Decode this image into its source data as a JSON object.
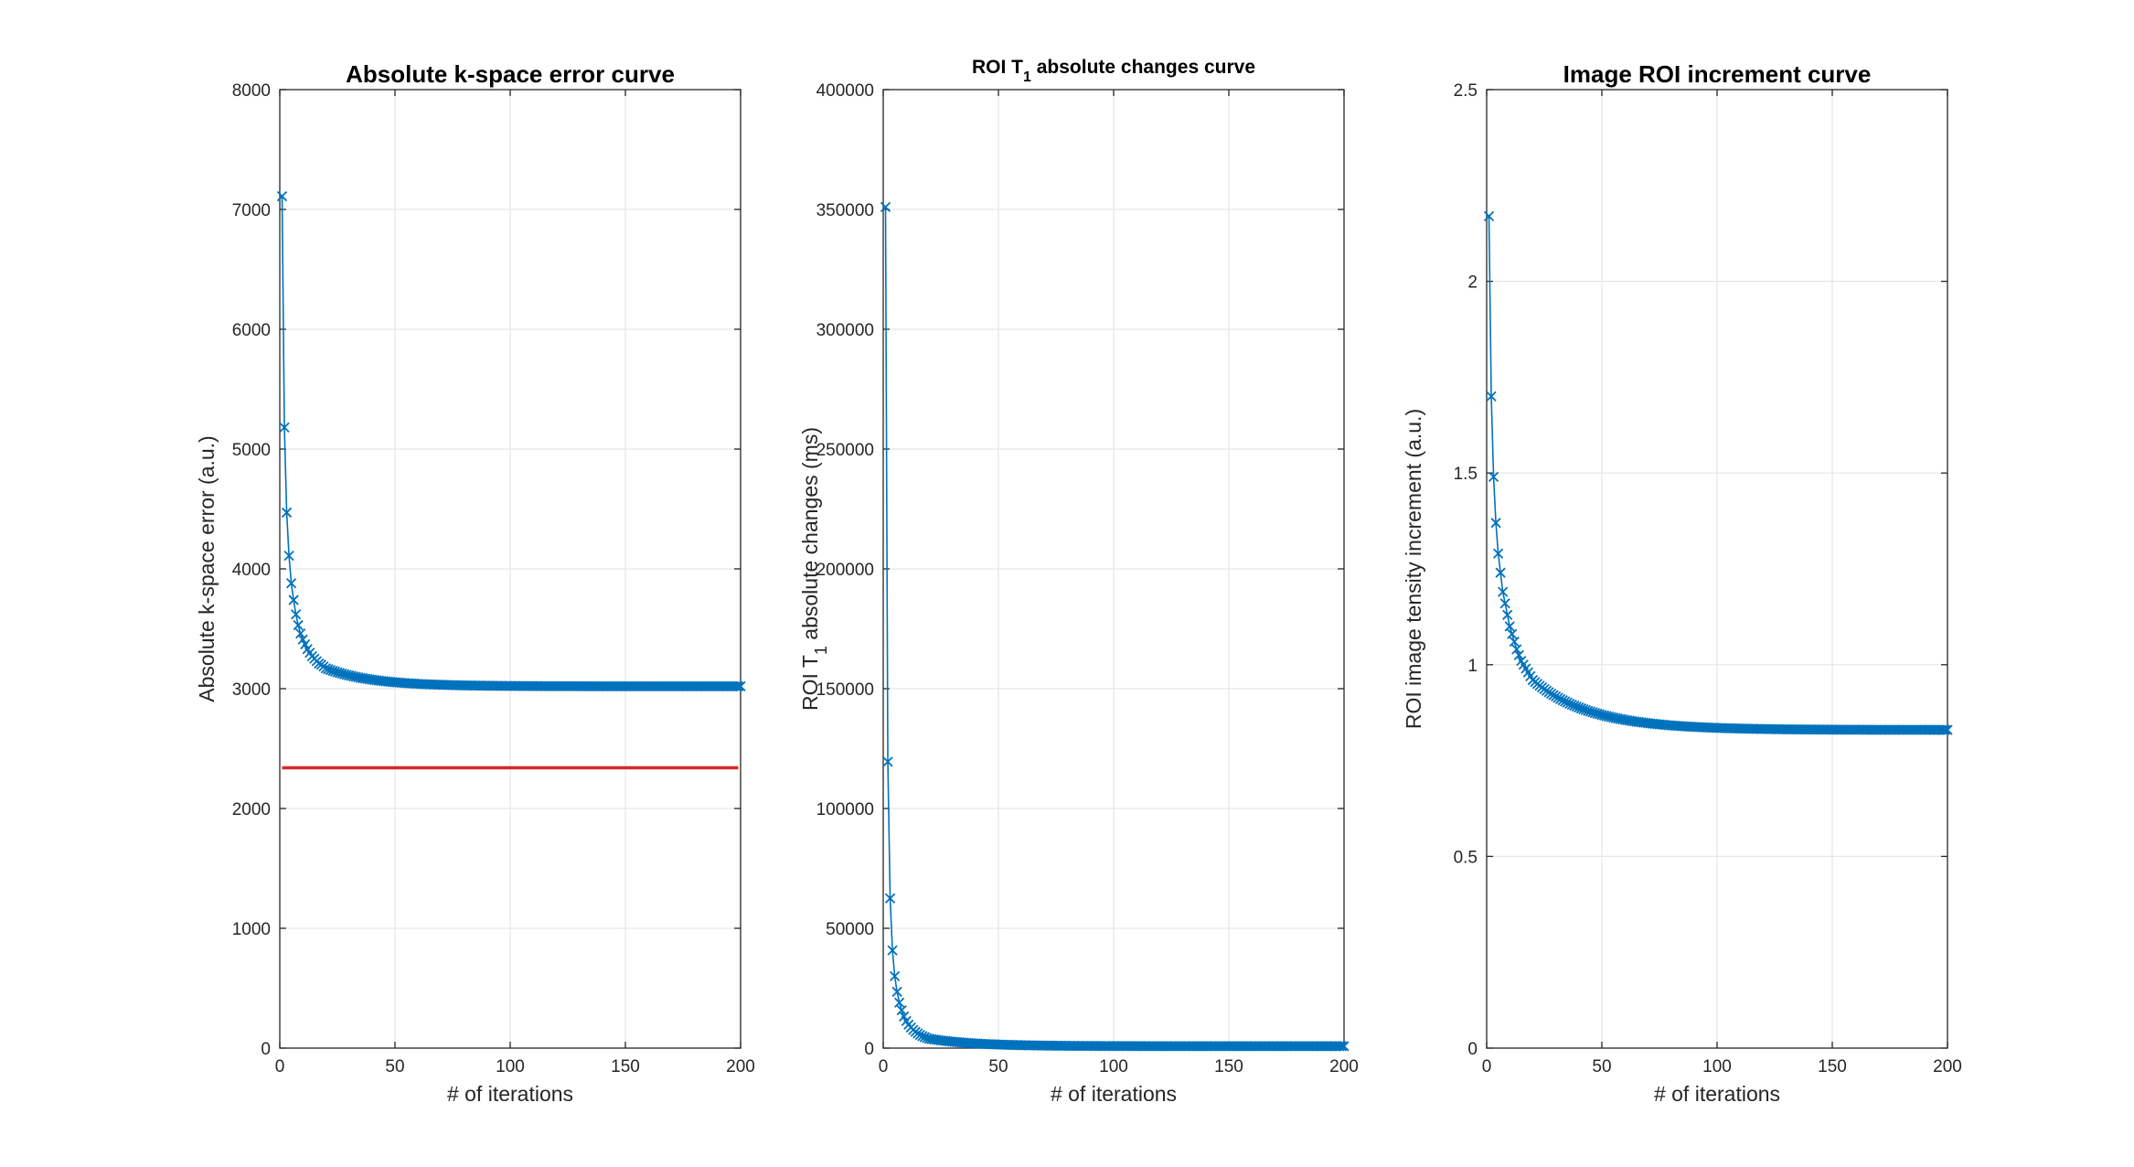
{
  "colors": {
    "series": "#0072BD",
    "reference_line": "#D62728",
    "grid": "#E6E6E6",
    "axis": "#262626",
    "background": "#FFFFFF"
  },
  "chart_data": [
    {
      "type": "line",
      "marker": "x",
      "title": "Absolute k-space error curve",
      "xlabel": "# of iterations",
      "ylabel": "Absolute k-space error (a.u.)",
      "xlim": [
        0,
        200
      ],
      "ylim": [
        0,
        8000
      ],
      "xticks": [
        0,
        50,
        100,
        150,
        200
      ],
      "yticks": [
        0,
        1000,
        2000,
        3000,
        4000,
        5000,
        6000,
        7000,
        8000
      ],
      "grid": true,
      "series": [
        {
          "x_start": 1,
          "x_end": 200,
          "values_first": [
            7110,
            5180,
            4470,
            4110,
            3880,
            3740,
            3620,
            3530,
            3460,
            3410,
            3370,
            3330,
            3300,
            3270,
            3250,
            3230,
            3210,
            3200,
            3185,
            3170
          ],
          "tail": {
            "from_x": 20,
            "value": 3170,
            "to_x": 200,
            "end_value": 3020,
            "decay_rate": 0.05
          }
        }
      ],
      "reference_lines": [
        {
          "y": 2340,
          "x_range": [
            1,
            199
          ]
        }
      ]
    },
    {
      "type": "line",
      "marker": "x",
      "title_parts": {
        "prefix": "ROI T",
        "subscript": "1",
        "suffix": " absolute changes curve"
      },
      "xlabel": "# of iterations",
      "ylabel_parts": {
        "prefix": "ROI T",
        "subscript": "1",
        "suffix": " absolute changes (ms)"
      },
      "xlim": [
        0,
        200
      ],
      "ylim": [
        0,
        400000
      ],
      "xticks": [
        0,
        50,
        100,
        150,
        200
      ],
      "yticks": [
        0,
        50000,
        100000,
        150000,
        200000,
        250000,
        300000,
        350000,
        400000
      ],
      "grid": true,
      "series": [
        {
          "x_start": 1,
          "x_end": 200,
          "values_first": [
            351000,
            119500,
            62500,
            40800,
            30000,
            23500,
            19000,
            15800,
            13200,
            11300,
            9800,
            8600,
            7600,
            6800,
            6100,
            5500,
            5000,
            4600,
            4200,
            3900
          ],
          "tail": {
            "from_x": 20,
            "value": 3900,
            "to_x": 200,
            "end_value": 800,
            "decay_rate": 0.05
          }
        }
      ]
    },
    {
      "type": "line",
      "marker": "x",
      "title": "Image ROI increment curve",
      "xlabel": "# of iterations",
      "ylabel": "ROI image tensity increment (a.u.)",
      "xlim": [
        0,
        200
      ],
      "ylim": [
        0,
        2.5
      ],
      "xticks": [
        0,
        50,
        100,
        150,
        200
      ],
      "yticks": [
        0,
        0.5,
        1,
        1.5,
        2,
        2.5
      ],
      "grid": true,
      "series": [
        {
          "x_start": 1,
          "x_end": 200,
          "values_first": [
            2.17,
            1.7,
            1.49,
            1.37,
            1.29,
            1.24,
            1.19,
            1.16,
            1.13,
            1.1,
            1.08,
            1.06,
            1.04,
            1.025,
            1.01,
            1.0,
            0.99,
            0.98,
            0.97,
            0.96
          ],
          "tail": {
            "from_x": 20,
            "value": 0.96,
            "to_x": 200,
            "end_value": 0.83,
            "decay_rate": 0.04
          }
        }
      ]
    }
  ]
}
